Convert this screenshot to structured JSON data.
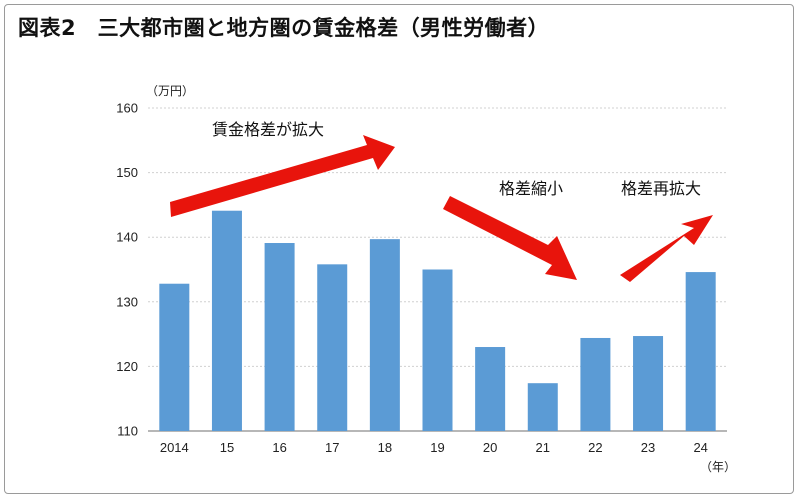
{
  "title": "図表2　三大都市圏と地方圏の賃金格差（男性労働者）",
  "chart_data": {
    "type": "bar",
    "categories": [
      "2014",
      "15",
      "16",
      "17",
      "18",
      "19",
      "20",
      "21",
      "22",
      "23",
      "24"
    ],
    "values": [
      132.8,
      144.1,
      139.1,
      135.8,
      139.7,
      135.0,
      123.0,
      117.4,
      124.4,
      124.7,
      134.6
    ],
    "ylim": [
      110,
      160
    ],
    "yticks": [
      110,
      120,
      130,
      140,
      150,
      160
    ],
    "y_unit": "（万円）",
    "x_unit": "（年）",
    "grid": true,
    "bar_color": "#5b9bd5",
    "arrow_color": "#e8140c",
    "annotations": [
      "賃金格差が拡大",
      "格差縮小",
      "格差再拡大"
    ]
  }
}
